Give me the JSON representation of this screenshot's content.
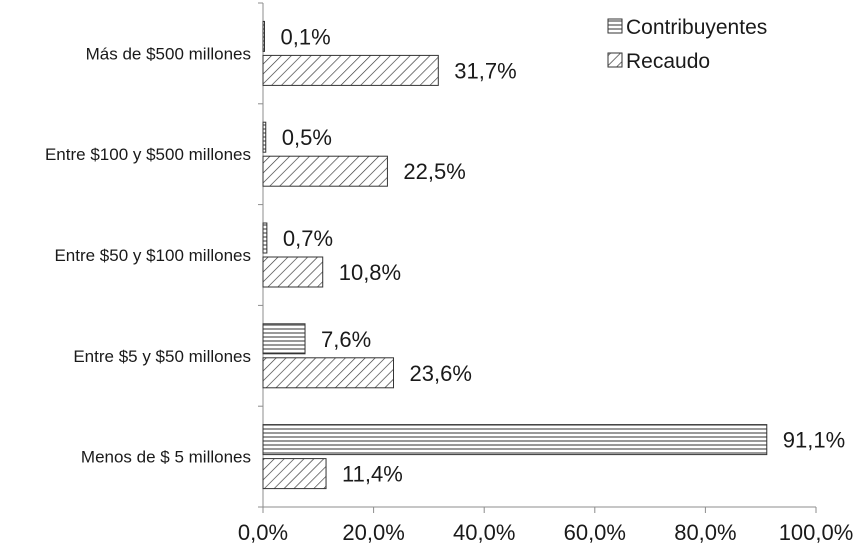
{
  "chart_data": {
    "type": "bar",
    "orientation": "horizontal",
    "categories": [
      "Más de $500 millones",
      "Entre $100 y $500 millones",
      "Entre $50 y $100 millones",
      "Entre $5 y $50 millones",
      "Menos de $ 5 millones"
    ],
    "series": [
      {
        "name": "Contribuyentes",
        "pattern": "horizontal-lines",
        "values": [
          0.1,
          0.5,
          0.7,
          7.6,
          91.1
        ],
        "labels": [
          "0,1%",
          "0,5%",
          "0,7%",
          "7,6%",
          "91,1%"
        ]
      },
      {
        "name": "Recaudo",
        "pattern": "diagonal-lines",
        "values": [
          31.7,
          22.5,
          10.8,
          23.6,
          11.4
        ],
        "labels": [
          "31,7%",
          "22,5%",
          "10,8%",
          "23,6%",
          "11,4%"
        ]
      }
    ],
    "xlim": [
      0,
      100
    ],
    "xticks": [
      0,
      20,
      40,
      60,
      80,
      100
    ],
    "xtick_labels": [
      "0,0%",
      "20,0%",
      "40,0%",
      "60,0%",
      "80,0%",
      "100,0%"
    ],
    "grid": false,
    "legend_position": "top-right",
    "colors": {
      "bar_stroke": "#333333",
      "pattern": "#333333",
      "text": "#1a1a1a"
    }
  }
}
